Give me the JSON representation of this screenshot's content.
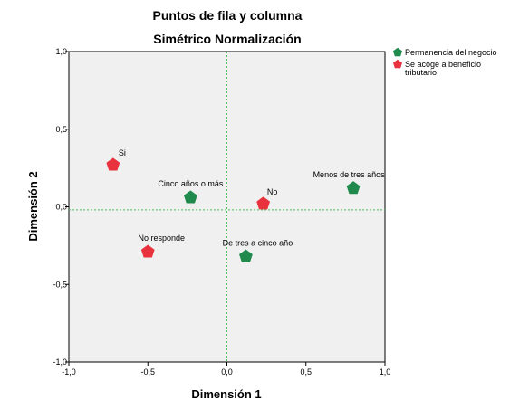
{
  "chart_data": {
    "type": "scatter",
    "title": "Puntos de fila y columna",
    "subtitle": "Simétrico Normalización",
    "xlabel": "Dimensión 1",
    "ylabel": "Dimensión 2",
    "xlim": [
      -1.0,
      1.0
    ],
    "ylim": [
      -1.0,
      1.0
    ],
    "xticks": [
      "-1,0",
      "-0,5",
      "0,0",
      "0,5",
      "1,0"
    ],
    "yticks": [
      "-1,0",
      "-0,5",
      "0,0",
      "0,5",
      "1,0"
    ],
    "reference_line_x": 0.0,
    "reference_line_y": -0.02,
    "legend_position": "top-right",
    "series": [
      {
        "name": "Permanencia del negocio",
        "color": "#1f8a4c",
        "points": [
          {
            "label": "Menos de tres años",
            "x": 0.8,
            "y": 0.12
          },
          {
            "label": "Cinco años o más",
            "x": -0.23,
            "y": 0.06
          },
          {
            "label": "De tres a cinco año",
            "x": 0.12,
            "y": -0.32
          }
        ]
      },
      {
        "name": "Se acoge a beneficio tributario",
        "color": "#e8333f",
        "points": [
          {
            "label": "Si",
            "x": -0.72,
            "y": 0.27
          },
          {
            "label": "No",
            "x": 0.23,
            "y": 0.02
          },
          {
            "label": "No responde",
            "x": -0.5,
            "y": -0.29
          }
        ]
      }
    ]
  }
}
